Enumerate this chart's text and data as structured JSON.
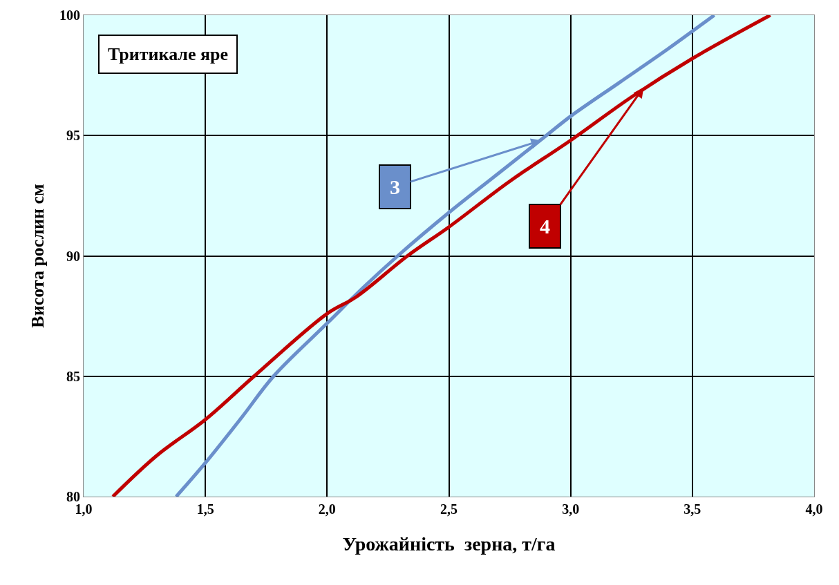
{
  "chart_data": {
    "type": "line",
    "title": "Тритикале яре",
    "xlabel": "Урожайність  зерна, т/га",
    "ylabel": "Висота рослин см",
    "xlim": [
      1.0,
      4.0
    ],
    "xticks": [
      {
        "value": 1.0,
        "label": "1,0"
      },
      {
        "value": 1.5,
        "label": "1,5"
      },
      {
        "value": 2.0,
        "label": "2,0"
      },
      {
        "value": 2.5,
        "label": "2,5"
      },
      {
        "value": 3.0,
        "label": "3,0"
      },
      {
        "value": 3.5,
        "label": "3,5"
      },
      {
        "value": 4.0,
        "label": "4,0"
      }
    ],
    "ylim": [
      80,
      100
    ],
    "yticks": [
      80,
      85,
      90,
      95,
      100
    ],
    "grid": true,
    "marker": "none",
    "line_style": "solid",
    "series": [
      {
        "color": "#6a8fcb",
        "x": [
          1.38,
          1.5,
          1.65,
          1.78,
          2.0,
          2.15,
          2.29,
          2.5,
          2.7,
          2.9,
          3.0,
          3.2,
          3.4,
          3.59
        ],
        "values": [
          80,
          81.4,
          83.3,
          85,
          87.2,
          88.7,
          90,
          91.8,
          93.4,
          95,
          95.8,
          97.2,
          98.6,
          100
        ]
      },
      {
        "color": "#c00000",
        "x": [
          1.12,
          1.3,
          1.5,
          1.7,
          2.0,
          2.12,
          2.33,
          2.5,
          2.75,
          3.0,
          3.25,
          3.5,
          3.82
        ],
        "values": [
          80,
          81.7,
          83.2,
          85,
          87.6,
          88.3,
          90,
          91.2,
          93.1,
          94.8,
          96.6,
          98.2,
          100
        ]
      }
    ],
    "annotations": [
      {
        "text": "3",
        "x": 2.88,
        "y": 94.8
      },
      {
        "text": "4",
        "x": 3.3,
        "y": 97.0
      }
    ]
  }
}
